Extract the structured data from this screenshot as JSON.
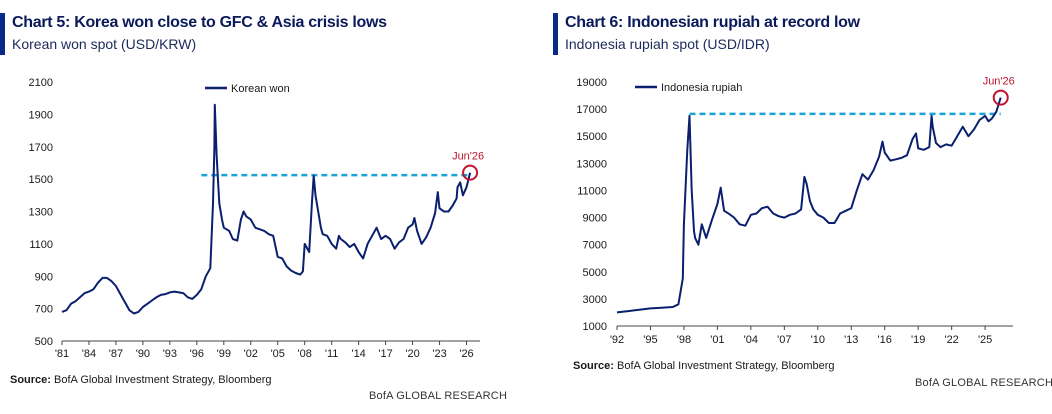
{
  "charts": [
    {
      "title": "Chart 5: Korea won close to GFC & Asia crisis lows",
      "subtitle": "Korean won spot (USD/KRW)",
      "source_label": "Source:",
      "source_text": "BofA Global Investment Strategy, Bloomberg",
      "branding": "BofA GLOBAL RESEARCH"
    },
    {
      "title": "Chart 6: Indonesian rupiah at record low",
      "subtitle": "Indonesia rupiah spot (USD/IDR)",
      "source_label": "Source:",
      "source_text": "BofA Global Investment Strategy, Bloomberg",
      "branding": "BofA GLOBAL RESEARCH"
    }
  ],
  "chart_data": [
    {
      "type": "line",
      "title": "Chart 5: Korea won close to GFC & Asia crisis lows",
      "subtitle": "Korean won spot (USD/KRW)",
      "xlabel": "",
      "ylabel": "",
      "xlim": [
        1981,
        2027.5
      ],
      "ylim": [
        500,
        2100
      ],
      "yticks": [
        500,
        700,
        900,
        1100,
        1300,
        1500,
        1700,
        1900,
        2100
      ],
      "xtick_labels": [
        "'81",
        "'84",
        "'87",
        "'90",
        "'93",
        "'96",
        "'99",
        "'02",
        "'05",
        "'08",
        "'11",
        "'14",
        "'17",
        "'20",
        "'23",
        "'26"
      ],
      "xtick_values": [
        1981,
        1984,
        1987,
        1990,
        1993,
        1996,
        1999,
        2002,
        2005,
        2008,
        2011,
        2014,
        2017,
        2020,
        2023,
        2026
      ],
      "legend_position": "top-center",
      "series": [
        {
          "name": "Korean won",
          "color": "#0a1f6e",
          "x": [
            1981.0,
            1981.5,
            1982.0,
            1982.5,
            1983.0,
            1983.5,
            1984.0,
            1984.5,
            1985.0,
            1985.5,
            1986.0,
            1986.5,
            1987.0,
            1987.5,
            1988.0,
            1988.5,
            1989.0,
            1989.5,
            1990.0,
            1990.5,
            1991.0,
            1991.5,
            1992.0,
            1992.5,
            1993.0,
            1993.5,
            1994.0,
            1994.5,
            1995.0,
            1995.5,
            1996.0,
            1996.5,
            1997.0,
            1997.5,
            1997.8,
            1997.95,
            1998.0,
            1998.2,
            1998.5,
            1998.8,
            1999.0,
            1999.3,
            1999.6,
            2000.0,
            2000.5,
            2000.9,
            2001.2,
            2001.5,
            2002.0,
            2002.5,
            2003.0,
            2003.5,
            2004.0,
            2004.5,
            2005.0,
            2005.5,
            2006.0,
            2006.5,
            2007.0,
            2007.5,
            2007.8,
            2008.0,
            2008.5,
            2008.8,
            2009.0,
            2009.2,
            2009.5,
            2009.8,
            2010.0,
            2010.5,
            2011.0,
            2011.5,
            2011.8,
            2012.0,
            2012.5,
            2013.0,
            2013.5,
            2014.0,
            2014.5,
            2015.0,
            2015.5,
            2016.0,
            2016.5,
            2017.0,
            2017.5,
            2018.0,
            2018.5,
            2019.0,
            2019.5,
            2020.0,
            2020.2,
            2020.5,
            2021.0,
            2021.5,
            2022.0,
            2022.5,
            2022.8,
            2023.0,
            2023.5,
            2024.0,
            2024.5,
            2024.9,
            2025.0,
            2025.3,
            2025.6,
            2026.0,
            2026.4
          ],
          "values": [
            680,
            690,
            730,
            745,
            770,
            795,
            805,
            820,
            860,
            890,
            890,
            870,
            840,
            790,
            740,
            690,
            670,
            680,
            710,
            730,
            750,
            770,
            785,
            790,
            800,
            805,
            800,
            795,
            770,
            760,
            785,
            820,
            900,
            950,
            1350,
            1700,
            1960,
            1650,
            1350,
            1250,
            1200,
            1190,
            1180,
            1130,
            1120,
            1250,
            1300,
            1270,
            1250,
            1200,
            1190,
            1180,
            1160,
            1150,
            1020,
            1010,
            960,
            935,
            920,
            910,
            930,
            1100,
            1050,
            1350,
            1520,
            1400,
            1300,
            1200,
            1160,
            1150,
            1100,
            1070,
            1150,
            1130,
            1110,
            1080,
            1100,
            1050,
            1010,
            1100,
            1150,
            1200,
            1130,
            1150,
            1130,
            1070,
            1110,
            1130,
            1200,
            1220,
            1260,
            1180,
            1100,
            1140,
            1200,
            1290,
            1420,
            1320,
            1300,
            1300,
            1340,
            1380,
            1450,
            1480,
            1400,
            1450,
            1540
          ]
        }
      ],
      "reference_line": {
        "value": 1525,
        "x_start": 1996.5,
        "x_end": 2026.4,
        "color": "#1aa3d9",
        "style": "dashed"
      },
      "annotations": [
        {
          "text": "Jun'26",
          "x": 2026.4,
          "y": 1540,
          "color": "#c0142e",
          "marker": "circle"
        }
      ]
    },
    {
      "type": "line",
      "title": "Chart 6: Indonesian rupiah at record low",
      "subtitle": "Indonesia rupiah spot (USD/IDR)",
      "xlabel": "",
      "ylabel": "",
      "xlim": [
        1992,
        2027.5
      ],
      "ylim": [
        1000,
        19000
      ],
      "yticks": [
        1000,
        3000,
        5000,
        7000,
        9000,
        11000,
        13000,
        15000,
        17000,
        19000
      ],
      "xtick_labels": [
        "'92",
        "'95",
        "'98",
        "'01",
        "'04",
        "'07",
        "'10",
        "'13",
        "'16",
        "'19",
        "'22",
        "'25"
      ],
      "xtick_values": [
        1992,
        1995,
        1998,
        2001,
        2004,
        2007,
        2010,
        2013,
        2016,
        2019,
        2022,
        2025
      ],
      "legend_position": "top-left",
      "series": [
        {
          "name": "Indonesia rupiah",
          "color": "#0a1f6e",
          "x": [
            1992.0,
            1993.0,
            1994.0,
            1995.0,
            1996.0,
            1997.0,
            1997.5,
            1997.9,
            1998.0,
            1998.3,
            1998.5,
            1998.7,
            1998.9,
            1999.0,
            1999.3,
            1999.6,
            2000.0,
            2000.5,
            2001.0,
            2001.3,
            2001.6,
            2002.0,
            2002.5,
            2003.0,
            2003.5,
            2004.0,
            2004.5,
            2005.0,
            2005.5,
            2006.0,
            2006.5,
            2007.0,
            2007.5,
            2008.0,
            2008.5,
            2008.8,
            2009.0,
            2009.3,
            2009.6,
            2010.0,
            2010.5,
            2011.0,
            2011.5,
            2012.0,
            2012.5,
            2013.0,
            2013.5,
            2014.0,
            2014.5,
            2015.0,
            2015.5,
            2015.8,
            2016.0,
            2016.5,
            2017.0,
            2017.5,
            2018.0,
            2018.5,
            2018.8,
            2019.0,
            2019.5,
            2020.0,
            2020.2,
            2020.3,
            2020.6,
            2021.0,
            2021.5,
            2022.0,
            2022.5,
            2023.0,
            2023.5,
            2024.0,
            2024.5,
            2025.0,
            2025.3,
            2025.6,
            2026.0,
            2026.4
          ],
          "values": [
            2000,
            2100,
            2200,
            2300,
            2350,
            2400,
            2600,
            4500,
            8500,
            14000,
            16500,
            11000,
            8000,
            7500,
            7000,
            8500,
            7500,
            8800,
            10000,
            11200,
            9500,
            9300,
            9000,
            8500,
            8400,
            9200,
            9300,
            9700,
            9800,
            9300,
            9100,
            9000,
            9200,
            9300,
            9600,
            12000,
            11500,
            10200,
            9600,
            9200,
            9000,
            8600,
            8600,
            9300,
            9500,
            9700,
            11000,
            12200,
            11800,
            12500,
            13500,
            14600,
            13800,
            13200,
            13300,
            13400,
            13600,
            14800,
            15200,
            14100,
            14000,
            14200,
            16500,
            15700,
            14500,
            14200,
            14400,
            14300,
            15000,
            15700,
            15000,
            15500,
            16200,
            16500,
            16100,
            16300,
            16800,
            17850
          ]
        }
      ],
      "reference_line": {
        "value": 16650,
        "x_start": 1998.5,
        "x_end": 2026.4,
        "color": "#1aa3d9",
        "style": "dashed"
      },
      "annotations": [
        {
          "text": "Jun'26",
          "x": 2026.4,
          "y": 17850,
          "color": "#c0142e",
          "marker": "circle"
        }
      ]
    }
  ]
}
